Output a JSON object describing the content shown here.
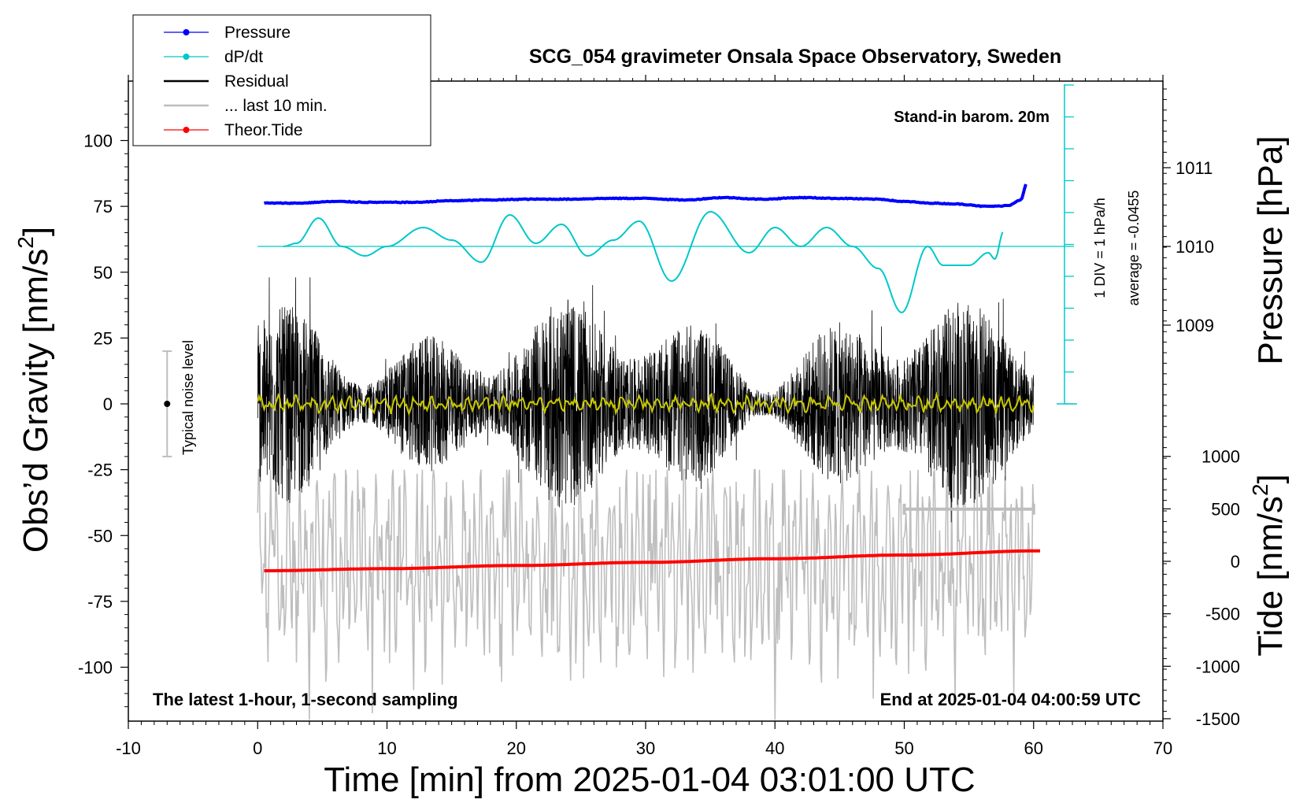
{
  "chart_data": {
    "type": "line",
    "title": "SCG_054 gravimeter Onsala Space Observatory, Sweden",
    "xlabel": "Time [min] from 2025-01-04 03:01:00 UTC",
    "ylabel_left": "Obs’d Gravity [nm/s",
    "ylabel_left_sup": "2",
    "ylabel_left_end": "]",
    "ylabel_right_pressure": "Pressure [hPa]",
    "ylabel_right_tide": "Tide [nm/s",
    "ylabel_right_tide_sup": "2",
    "ylabel_right_tide_end": "]",
    "xlim": [
      -10,
      70
    ],
    "ylim": [
      -120,
      120
    ],
    "x_ticks": [
      "-10",
      "0",
      "10",
      "20",
      "30",
      "40",
      "50",
      "60",
      "70"
    ],
    "y_ticks": [
      "100",
      "75",
      "50",
      "25",
      "0",
      "-25",
      "-50",
      "-75",
      "-100"
    ],
    "pressure_ticks": [
      "1011",
      "1010",
      "1009"
    ],
    "tide_ticks": [
      "1000",
      "500",
      "0",
      "-500",
      "-1000",
      "-1500"
    ],
    "legend": [
      {
        "label": "Pressure",
        "color": "#0000ff",
        "marker": true
      },
      {
        "label": "dP/dt",
        "color": "#00c8c8",
        "marker": true
      },
      {
        "label": "Residual",
        "color": "#000000",
        "marker": false
      },
      {
        "label": "... last 10 min.",
        "color": "#bebebe",
        "marker": false
      },
      {
        "label": "Theor.Tide",
        "color": "#ff0000",
        "marker": true
      }
    ],
    "annotations": {
      "barometer": "Stand-in barom. 20m",
      "dpdt_scale": "1 DIV = 1 hPa/h",
      "dpdt_average": "average = -0.0455",
      "noise": "Typical noise level",
      "bottom_left": "The latest 1-hour, 1-second sampling",
      "bottom_right": "End at 2025-01-04 04:00:59 UTC"
    },
    "series": [
      {
        "name": "Pressure",
        "axis": "pressure_hPa",
        "color": "#0000ff",
        "x": [
          0.5,
          3,
          6,
          9,
          12,
          15,
          18,
          21,
          24,
          27,
          30,
          33,
          36,
          39,
          42,
          45,
          48,
          50,
          52,
          54,
          55,
          56,
          57,
          58,
          59,
          59.5
        ],
        "values": [
          1010.55,
          1010.55,
          1010.57,
          1010.56,
          1010.56,
          1010.58,
          1010.59,
          1010.6,
          1010.6,
          1010.61,
          1010.61,
          1010.59,
          1010.62,
          1010.6,
          1010.62,
          1010.61,
          1010.6,
          1010.57,
          1010.55,
          1010.54,
          1010.53,
          1010.51,
          1010.51,
          1010.52,
          1010.59,
          1010.81
        ]
      },
      {
        "name": "dP/dt",
        "axis": "dpdt_hPa_per_h",
        "color": "#00c8c8",
        "baseline": 0,
        "x": [
          2,
          3,
          4.7,
          6.5,
          8.3,
          10,
          12.8,
          15,
          17.3,
          19.5,
          21.5,
          23.5,
          25.5,
          27.5,
          29.5,
          32,
          35,
          38,
          40,
          42,
          44,
          46,
          48,
          49.8,
          51.8,
          53,
          55,
          56.5,
          57,
          57.7
        ],
        "values": [
          0,
          0.1,
          0.9,
          0,
          -0.3,
          0,
          0.6,
          0.2,
          -0.5,
          1.0,
          0.1,
          0.7,
          -0.3,
          0.2,
          0.8,
          -1.1,
          1.1,
          -0.2,
          0.6,
          0,
          0.6,
          0,
          -0.7,
          -2.1,
          0,
          -0.6,
          -0.6,
          -0.2,
          -0.4,
          0.5
        ]
      },
      {
        "name": "Theor.Tide",
        "axis": "tide_nm_s2",
        "color": "#ff0000",
        "x": [
          0.5,
          10,
          20,
          30,
          40,
          50,
          60.5
        ],
        "values": [
          -90,
          -70,
          -40,
          -10,
          25,
          60,
          100
        ]
      },
      {
        "name": "Residual",
        "axis": "gravity_nm_s2",
        "color": "#000000",
        "x_range": [
          0,
          60
        ],
        "typical_range": [
          -30,
          30
        ],
        "extreme_range": [
          -45,
          48
        ]
      },
      {
        "name": "Residual (smoothed)",
        "axis": "gravity_nm_s2",
        "color": "#c8c800",
        "x_range": [
          0,
          60
        ],
        "typical_range": [
          -4,
          4
        ]
      },
      {
        "name": "... last 10 min.",
        "axis": "gravity_nm_s2",
        "color": "#bebebe",
        "x_range": [
          0,
          60
        ],
        "typical_range": [
          -90,
          -30
        ],
        "extreme_range": [
          -120,
          -25
        ]
      }
    ],
    "noise_level": {
      "x": -7,
      "center": 0,
      "low": -20,
      "high": 20
    },
    "last_window_bar": {
      "x_start": 50,
      "x_end": 60,
      "y": -40
    }
  }
}
